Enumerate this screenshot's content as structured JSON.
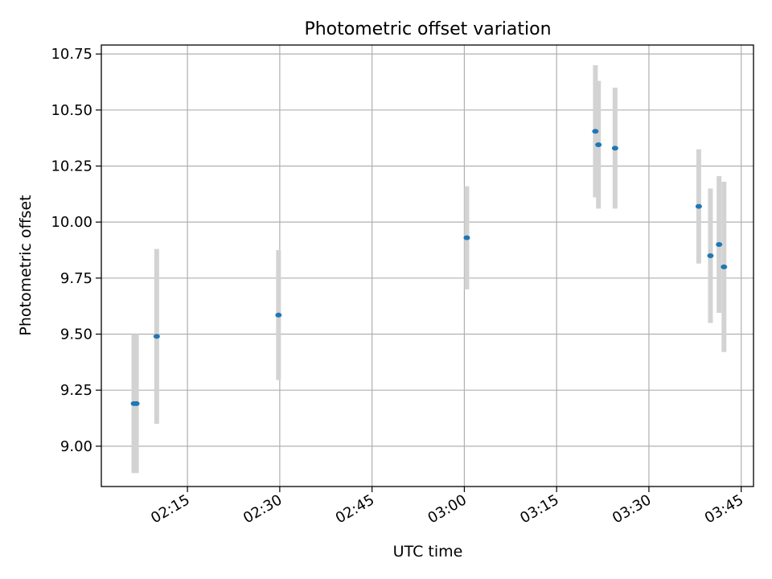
{
  "chart_data": {
    "type": "scatter",
    "title": "Photometric offset variation",
    "xlabel": "UTC time",
    "ylabel": "Photometric offset",
    "xlim": [
      "02:01",
      "03:47"
    ],
    "ylim": [
      8.82,
      10.79
    ],
    "grid": true,
    "x_ticks": [
      "02:15",
      "02:30",
      "02:45",
      "03:00",
      "03:15",
      "03:30",
      "03:45"
    ],
    "y_ticks": [
      9.0,
      9.25,
      9.5,
      9.75,
      10.0,
      10.25,
      10.5,
      10.75
    ],
    "y_tick_labels": [
      "9.00",
      "9.25",
      "9.50",
      "9.75",
      "10.00",
      "10.25",
      "10.50",
      "10.75"
    ],
    "colors": {
      "point": "#1f77b4",
      "errorbar": "#d3d3d3",
      "grid": "#b0b0b0"
    },
    "points": [
      {
        "x": "02:06.3",
        "y": 9.19,
        "err": 0.31
      },
      {
        "x": "02:06.7",
        "y": 9.19,
        "err": 0.31
      },
      {
        "x": "02:10.0",
        "y": 9.49,
        "err": 0.39
      },
      {
        "x": "02:29.8",
        "y": 9.585,
        "err": 0.29
      },
      {
        "x": "03:00.4",
        "y": 9.93,
        "err": 0.23
      },
      {
        "x": "03:21.3",
        "y": 10.405,
        "err": 0.295
      },
      {
        "x": "03:21.8",
        "y": 10.345,
        "err": 0.285
      },
      {
        "x": "03:24.5",
        "y": 10.33,
        "err": 0.27
      },
      {
        "x": "03:38.1",
        "y": 10.07,
        "err": 0.255
      },
      {
        "x": "03:40.0",
        "y": 9.85,
        "err": 0.3
      },
      {
        "x": "03:41.4",
        "y": 9.9,
        "err": 0.305
      },
      {
        "x": "03:42.2",
        "y": 9.8,
        "err": 0.38
      }
    ]
  }
}
